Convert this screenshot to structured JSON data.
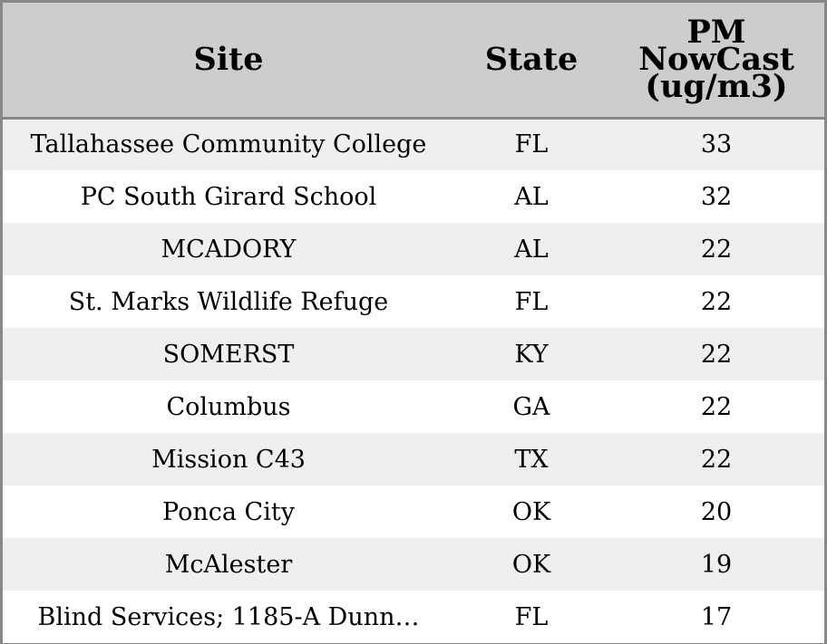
{
  "chart_data": {
    "type": "table",
    "columns": [
      "Site",
      "State",
      [
        "PM",
        "NowCast",
        "(ug/m3)"
      ]
    ],
    "rows": [
      [
        "Tallahassee Community College",
        "FL",
        "33"
      ],
      [
        "PC South Girard School",
        "AL",
        "32"
      ],
      [
        "MCADORY",
        "AL",
        "22"
      ],
      [
        "St. Marks Wildlife Refuge",
        "FL",
        "22"
      ],
      [
        "SOMERST",
        "KY",
        "22"
      ],
      [
        "Columbus",
        "GA",
        "22"
      ],
      [
        "Mission C43",
        "TX",
        "22"
      ],
      [
        "Ponca City",
        "OK",
        "20"
      ],
      [
        "McAlester",
        "OK",
        "19"
      ],
      [
        "Blind Services; 1185-A Dunn…",
        "FL",
        "17"
      ]
    ]
  },
  "colors": {
    "header_bg": "#cdcdcd",
    "row_alt_bg": "#efefef",
    "row_bg": "#ffffff",
    "border": "#888888"
  }
}
